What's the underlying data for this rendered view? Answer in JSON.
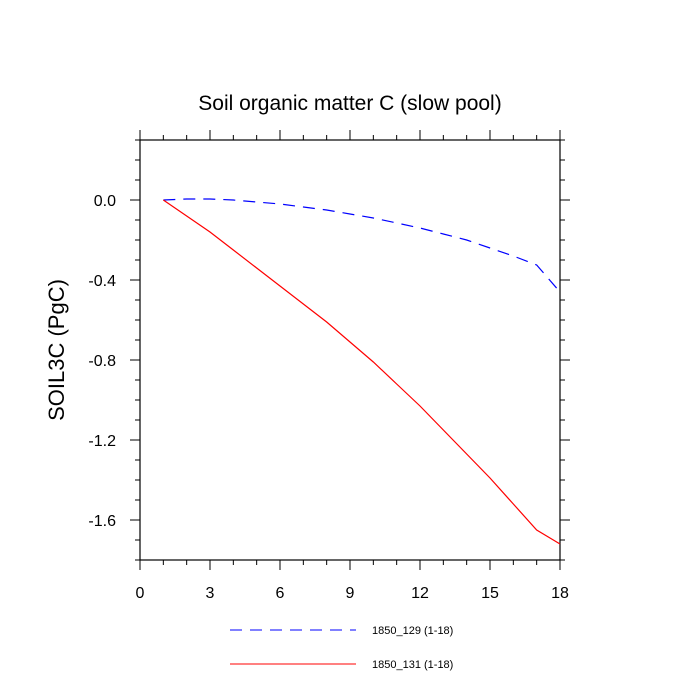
{
  "chart_data": {
    "type": "line",
    "title": "Soil organic matter C (slow pool)",
    "xlabel": "",
    "ylabel": "SOIL3C  (PgC)",
    "xlim": [
      0,
      18
    ],
    "ylim": [
      -1.8,
      0.3
    ],
    "xticks": [
      0,
      3,
      6,
      9,
      12,
      15,
      18
    ],
    "xtick_labels": [
      "0",
      "3",
      "6",
      "9",
      "12",
      "15",
      "18"
    ],
    "yticks": [
      0.0,
      -0.4,
      -0.8,
      -1.2,
      -1.6
    ],
    "ytick_labels": [
      "0.0",
      "-0.4",
      "-0.8",
      "-1.2",
      "-1.6"
    ],
    "legend_position": "bottom-center",
    "series": [
      {
        "name": "1850_129 (1-18)",
        "color": "#0000ff",
        "style": "dashed",
        "x": [
          1,
          2,
          3,
          4,
          5,
          6,
          7,
          8,
          9,
          10,
          11,
          12,
          13,
          14,
          15,
          16,
          17,
          18
        ],
        "y": [
          0.0,
          0.005,
          0.005,
          0.0,
          -0.01,
          -0.02,
          -0.035,
          -0.05,
          -0.07,
          -0.09,
          -0.115,
          -0.14,
          -0.17,
          -0.2,
          -0.24,
          -0.28,
          -0.325,
          -0.46
        ]
      },
      {
        "name": "1850_131 (1-18)",
        "color": "#ff0000",
        "style": "solid",
        "x": [
          1,
          2,
          3,
          4,
          5,
          6,
          7,
          8,
          9,
          10,
          11,
          12,
          13,
          14,
          15,
          16,
          17,
          18
        ],
        "y": [
          0.0,
          -0.08,
          -0.16,
          -0.25,
          -0.34,
          -0.43,
          -0.52,
          -0.61,
          -0.71,
          -0.81,
          -0.92,
          -1.03,
          -1.15,
          -1.27,
          -1.39,
          -1.52,
          -1.65,
          -1.72
        ]
      }
    ]
  }
}
